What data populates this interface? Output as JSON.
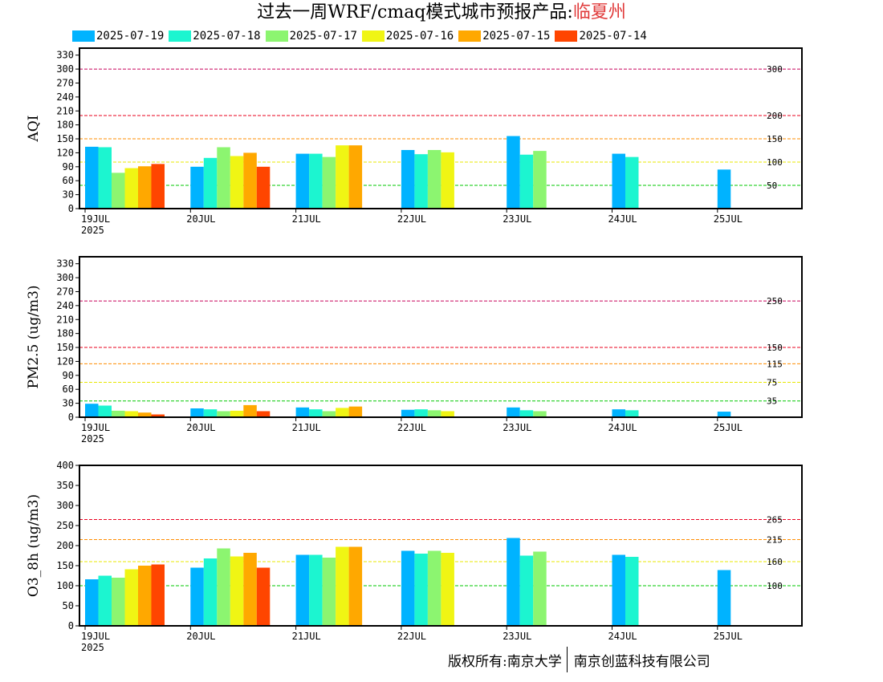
{
  "title": {
    "prefix": "过去一周WRF/cmaq模式城市预报产品:",
    "city": "临夏州"
  },
  "legend": [
    {
      "label": "2025-07-19",
      "color": "#00b3ff"
    },
    {
      "label": "2025-07-18",
      "color": "#1cf5d0"
    },
    {
      "label": "2025-07-17",
      "color": "#8cf570"
    },
    {
      "label": "2025-07-16",
      "color": "#f0f514"
    },
    {
      "label": "2025-07-15",
      "color": "#ffa800"
    },
    {
      "label": "2025-07-14",
      "color": "#ff4500"
    }
  ],
  "chart_data": [
    {
      "type": "bar",
      "ylabel": "AQI",
      "categories": [
        "19JUL",
        "20JUL",
        "21JUL",
        "22JUL",
        "23JUL",
        "24JUL",
        "25JUL"
      ],
      "year_label": "2025",
      "ylim": [
        0,
        345
      ],
      "yticks": [
        0,
        30,
        60,
        90,
        120,
        150,
        180,
        210,
        240,
        270,
        300,
        330
      ],
      "thresholds": [
        {
          "value": 300,
          "label": "300",
          "color": "#c8005a"
        },
        {
          "value": 200,
          "label": "200",
          "color": "#e8001e"
        },
        {
          "value": 150,
          "label": "150",
          "color": "#ff8c00"
        },
        {
          "value": 100,
          "label": "100",
          "color": "#e8e800"
        },
        {
          "value": 50,
          "label": "50",
          "color": "#00c800"
        }
      ],
      "series": [
        {
          "name": "2025-07-19",
          "values": [
            133,
            90,
            118,
            126,
            156,
            118,
            84
          ]
        },
        {
          "name": "2025-07-18",
          "values": [
            132,
            109,
            118,
            117,
            116,
            111,
            null
          ]
        },
        {
          "name": "2025-07-17",
          "values": [
            77,
            132,
            111,
            126,
            124,
            null,
            null
          ]
        },
        {
          "name": "2025-07-16",
          "values": [
            87,
            113,
            136,
            121,
            null,
            null,
            null
          ]
        },
        {
          "name": "2025-07-15",
          "values": [
            91,
            120,
            136,
            null,
            null,
            null,
            null
          ]
        },
        {
          "name": "2025-07-14",
          "values": [
            96,
            90,
            null,
            null,
            null,
            null,
            null
          ]
        }
      ]
    },
    {
      "type": "bar",
      "ylabel": "PM2.5 (ug/m3)",
      "categories": [
        "19JUL",
        "20JUL",
        "21JUL",
        "22JUL",
        "23JUL",
        "24JUL",
        "25JUL"
      ],
      "year_label": "2025",
      "ylim": [
        0,
        345
      ],
      "yticks": [
        0,
        30,
        60,
        90,
        120,
        150,
        180,
        210,
        240,
        270,
        300,
        330
      ],
      "thresholds": [
        {
          "value": 250,
          "label": "250",
          "color": "#c8005a"
        },
        {
          "value": 150,
          "label": "150",
          "color": "#e8001e"
        },
        {
          "value": 115,
          "label": "115",
          "color": "#ff8c00"
        },
        {
          "value": 75,
          "label": "75",
          "color": "#e8e800"
        },
        {
          "value": 35,
          "label": "35",
          "color": "#00c800"
        }
      ],
      "series": [
        {
          "name": "2025-07-19",
          "values": [
            29,
            19,
            21,
            16,
            21,
            17,
            12
          ]
        },
        {
          "name": "2025-07-18",
          "values": [
            25,
            17,
            17,
            17,
            15,
            15,
            null
          ]
        },
        {
          "name": "2025-07-17",
          "values": [
            14,
            13,
            13,
            15,
            13,
            null,
            null
          ]
        },
        {
          "name": "2025-07-16",
          "values": [
            13,
            14,
            20,
            13,
            null,
            null,
            null
          ]
        },
        {
          "name": "2025-07-15",
          "values": [
            10,
            26,
            23,
            null,
            null,
            null,
            null
          ]
        },
        {
          "name": "2025-07-14",
          "values": [
            6,
            13,
            null,
            null,
            null,
            null,
            null
          ]
        }
      ]
    },
    {
      "type": "bar",
      "ylabel": "O3_8h (ug/m3)",
      "categories": [
        "19JUL",
        "20JUL",
        "21JUL",
        "22JUL",
        "23JUL",
        "24JUL",
        "25JUL"
      ],
      "year_label": "2025",
      "ylim": [
        0,
        400
      ],
      "yticks": [
        0,
        50,
        100,
        150,
        200,
        250,
        300,
        350,
        400
      ],
      "thresholds": [
        {
          "value": 265,
          "label": "265",
          "color": "#e8001e"
        },
        {
          "value": 215,
          "label": "215",
          "color": "#ff8c00"
        },
        {
          "value": 160,
          "label": "160",
          "color": "#e8e800"
        },
        {
          "value": 100,
          "label": "100",
          "color": "#00c800"
        }
      ],
      "series": [
        {
          "name": "2025-07-19",
          "values": [
            116,
            145,
            177,
            187,
            219,
            177,
            139
          ]
        },
        {
          "name": "2025-07-18",
          "values": [
            125,
            168,
            177,
            180,
            175,
            172,
            null
          ]
        },
        {
          "name": "2025-07-17",
          "values": [
            120,
            193,
            170,
            187,
            185,
            null,
            null
          ]
        },
        {
          "name": "2025-07-16",
          "values": [
            141,
            173,
            197,
            182,
            null,
            null,
            null
          ]
        },
        {
          "name": "2025-07-15",
          "values": [
            150,
            182,
            197,
            null,
            null,
            null,
            null
          ]
        },
        {
          "name": "2025-07-14",
          "values": [
            153,
            145,
            null,
            null,
            null,
            null,
            null
          ]
        }
      ]
    }
  ],
  "footer": {
    "left": "版权所有:南京大学",
    "right": "南京创蓝科技有限公司"
  }
}
